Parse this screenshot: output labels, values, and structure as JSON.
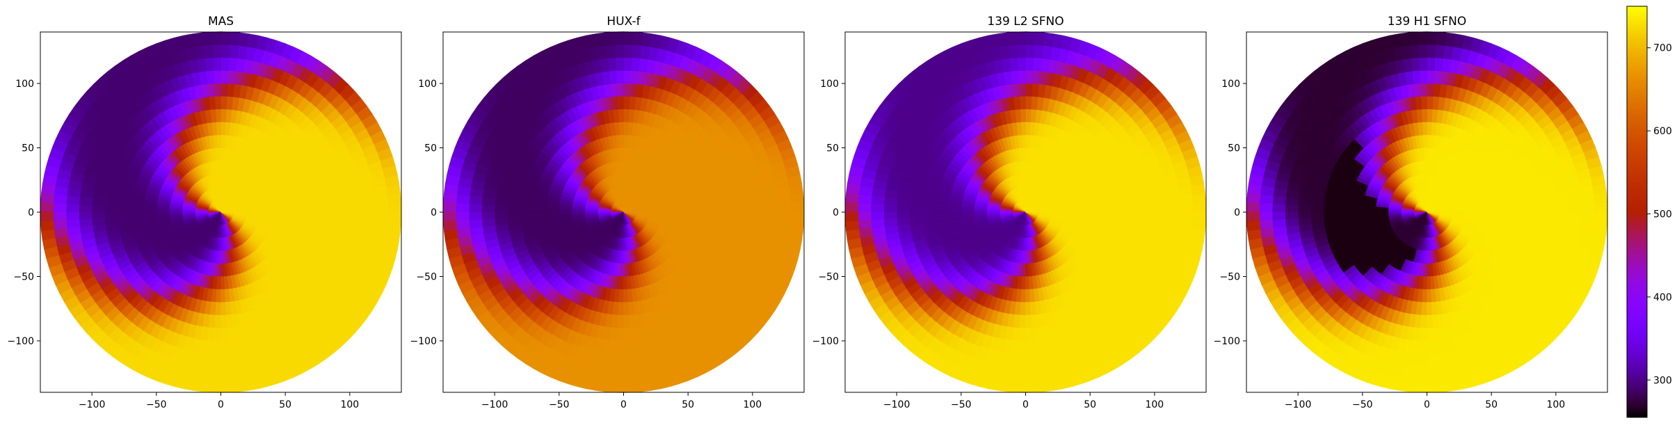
{
  "chart_data": [
    {
      "type": "heatmap",
      "title": "MAS",
      "xlabel": "",
      "ylabel": "",
      "xlim": [
        -140,
        140
      ],
      "ylim": [
        -140,
        140
      ],
      "xticks": [
        -100,
        -50,
        0,
        50,
        100
      ],
      "yticks": [
        -100,
        -50,
        0,
        50,
        100
      ],
      "grid": false,
      "radius": 140,
      "colormap": "gnuplot",
      "values_description": "polar field; high values (~700) in upper half, low (~290) spiral band in lower-left",
      "spiral_inner_angle_deg": 185,
      "spiral_outer_angle_deg": 290,
      "value_high": 725,
      "value_low": 290
    },
    {
      "type": "heatmap",
      "title": "HUX-f",
      "xlabel": "",
      "ylabel": "",
      "xlim": [
        -140,
        140
      ],
      "ylim": [
        -140,
        140
      ],
      "xticks": [
        -100,
        -50,
        0,
        50,
        100
      ],
      "yticks": [
        -100,
        -50,
        0,
        50,
        100
      ],
      "grid": false,
      "radius": 140,
      "colormap": "gnuplot",
      "value_high": 665,
      "value_low": 285
    },
    {
      "type": "heatmap",
      "title": "139 L2 SFNO",
      "xlabel": "",
      "ylabel": "",
      "xlim": [
        -140,
        140
      ],
      "ylim": [
        -140,
        140
      ],
      "xticks": [
        -100,
        -50,
        0,
        50,
        100
      ],
      "yticks": [
        -100,
        -50,
        0,
        50,
        100
      ],
      "grid": false,
      "radius": 140,
      "colormap": "gnuplot",
      "value_high": 730,
      "value_low": 300
    },
    {
      "type": "heatmap",
      "title": "139 H1 SFNO",
      "xlabel": "",
      "ylabel": "",
      "xlim": [
        -140,
        140
      ],
      "ylim": [
        -140,
        140
      ],
      "xticks": [
        -100,
        -50,
        0,
        50,
        100
      ],
      "yticks": [
        -100,
        -50,
        0,
        50,
        100
      ],
      "grid": false,
      "radius": 140,
      "colormap": "gnuplot",
      "value_high": 735,
      "value_low": 270
    }
  ],
  "colorbar": {
    "range": [
      255,
      750
    ],
    "ticks": [
      300,
      400,
      500,
      600,
      700
    ],
    "colormap": "gnuplot",
    "placement": "right"
  }
}
